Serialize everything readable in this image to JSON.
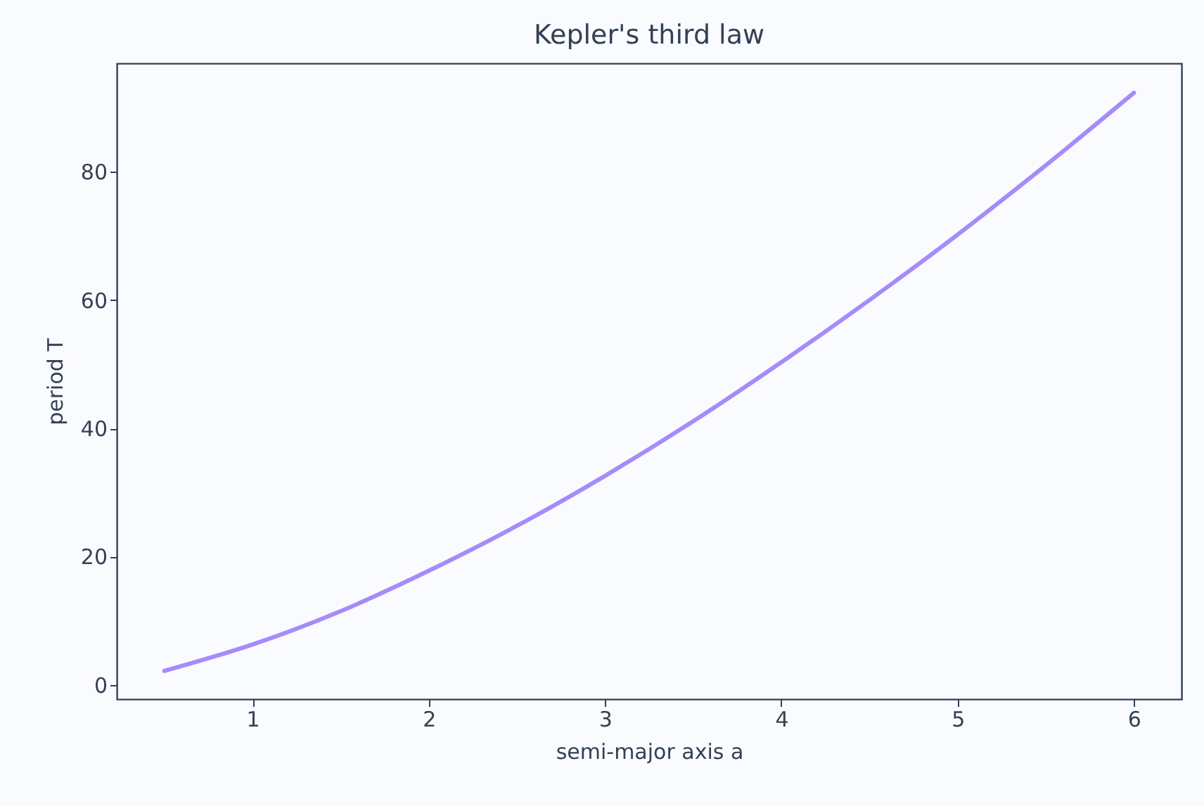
{
  "chart_data": {
    "type": "line",
    "title": "Kepler's third law",
    "xlabel": "semi-major axis a",
    "ylabel": "period T",
    "x": [
      0.5,
      1,
      1.5,
      2,
      2.5,
      3,
      3.5,
      4,
      4.5,
      5,
      5.5,
      6
    ],
    "series": [
      {
        "color": "#a78bfa",
        "values": [
          2.2,
          6.3,
          11.5,
          17.8,
          24.8,
          32.6,
          41.1,
          50.3,
          60.0,
          70.2,
          81.0,
          92.3
        ]
      }
    ],
    "xlim": [
      0.23,
      6.27
    ],
    "ylim": [
      -2.2,
      96.9
    ],
    "xticks": [
      1,
      2,
      3,
      4,
      5,
      6
    ],
    "yticks": [
      0,
      20,
      40,
      60,
      80
    ],
    "grid": false,
    "legend": false,
    "marker": "none",
    "line_style": "solid"
  }
}
